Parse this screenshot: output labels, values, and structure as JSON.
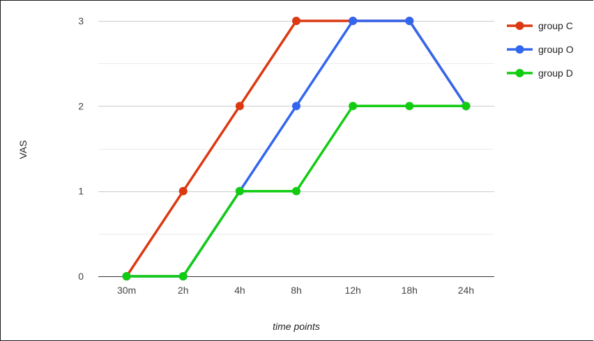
{
  "chart_data": {
    "type": "line",
    "title": "",
    "xlabel": "time points",
    "ylabel": "VAS",
    "categories": [
      "30m",
      "2h",
      "4h",
      "8h",
      "12h",
      "18h",
      "24h"
    ],
    "ylim": [
      0,
      3
    ],
    "yticks": [
      "0",
      "1",
      "2",
      "3"
    ],
    "grid": true,
    "legend_position": "right",
    "series": [
      {
        "name": "group C",
        "color": "#dc3912",
        "values": [
          0,
          1,
          2,
          3,
          3,
          3,
          2
        ]
      },
      {
        "name": "group O",
        "color": "#3366ee",
        "values": [
          0,
          0,
          1,
          2,
          3,
          3,
          2
        ]
      },
      {
        "name": "group D",
        "color": "#11cc11",
        "values": [
          0,
          0,
          1,
          1,
          2,
          2,
          2
        ]
      }
    ]
  }
}
